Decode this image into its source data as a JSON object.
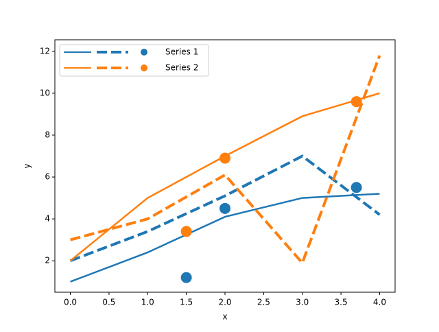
{
  "chart_data": {
    "type": "line",
    "x_label": "x",
    "y_label": "y",
    "x": [
      0,
      1,
      2,
      3,
      4
    ],
    "series": [
      {
        "name": "Series 1",
        "color": "#1f77b4",
        "values": [
          1,
          2.4,
          4.1,
          5.0,
          5.2
        ],
        "dashed_values": [
          2,
          3.4,
          5.1,
          7.0,
          4.2
        ],
        "points_x": [
          1.5,
          2,
          3.7
        ],
        "points_y": [
          1.2,
          4.5,
          5.5
        ]
      },
      {
        "name": "Series 2",
        "color": "#ff7f0e",
        "values": [
          2,
          5,
          7,
          8.9,
          10
        ],
        "dashed_values": [
          3,
          4,
          6.1,
          1.9,
          11.8
        ],
        "points_x": [
          1.5,
          2,
          3.7
        ],
        "points_y": [
          3.4,
          6.9,
          9.6
        ]
      }
    ],
    "xlim": [
      -0.2,
      4.2
    ],
    "ylim": [
      0.5,
      12.55
    ],
    "xticks": [
      {
        "value": 0,
        "label": "0.0"
      },
      {
        "value": 0.5,
        "label": "0.5"
      },
      {
        "value": 1,
        "label": "1.0"
      },
      {
        "value": 1.5,
        "label": "1.5"
      },
      {
        "value": 2,
        "label": "2.0"
      },
      {
        "value": 2.5,
        "label": "2.5"
      },
      {
        "value": 3,
        "label": "3.0"
      },
      {
        "value": 3.5,
        "label": "3.5"
      },
      {
        "value": 4,
        "label": "4.0"
      }
    ],
    "yticks": [
      2,
      4,
      6,
      8,
      10,
      12
    ],
    "legend": "upper left",
    "grid": false
  }
}
